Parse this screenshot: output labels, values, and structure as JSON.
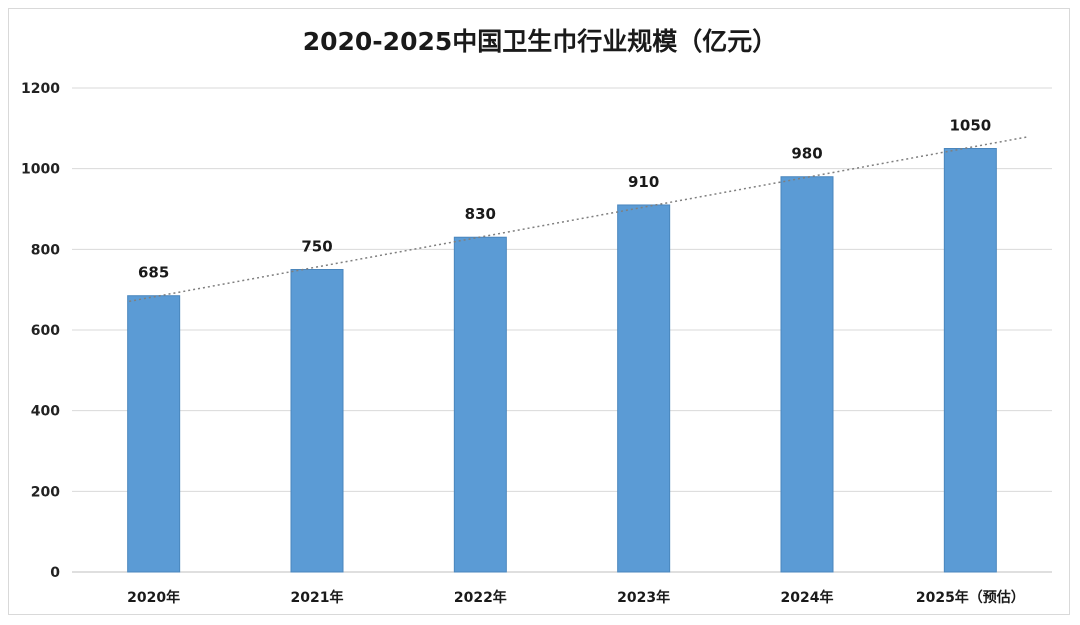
{
  "chart_data": {
    "type": "bar",
    "title": "2020-2025中国卫生巾行业规模（亿元）",
    "categories": [
      "2020年",
      "2021年",
      "2022年",
      "2023年",
      "2024年",
      "2025年（预估）"
    ],
    "values": [
      685,
      750,
      830,
      910,
      980,
      1050
    ],
    "data_labels": [
      "685",
      "750",
      "830",
      "910",
      "980",
      "1050"
    ],
    "yticks": [
      "0",
      "200",
      "400",
      "600",
      "800",
      "1000",
      "1200"
    ],
    "ylim": [
      0,
      1200
    ],
    "grid": true,
    "trendline": "linear-dotted",
    "bar_color": "#5b9bd5",
    "xlabel": "",
    "ylabel": ""
  }
}
